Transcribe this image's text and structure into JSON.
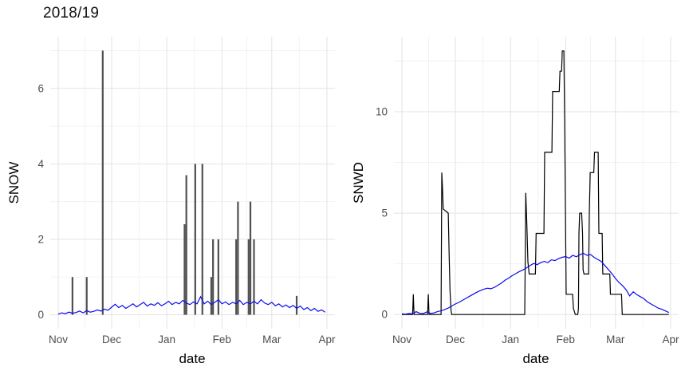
{
  "figure": {
    "title": "2018/19"
  },
  "colors": {
    "background": "#ffffff",
    "bar": "#515151",
    "black": "#000000",
    "blue": "#0b0bf0",
    "grid_major": "#e3e3e3",
    "grid_minor": "#f1f1f1",
    "tick_text": "#4d4d4d",
    "axis_title_text": "#000000"
  },
  "chart_data": [
    {
      "id": "snow-panel",
      "type": "bar",
      "title": "",
      "xlabel": "date",
      "ylabel": "SNOW",
      "x_tick_labels": [
        "Nov",
        "Dec",
        "Jan",
        "Feb",
        "Mar",
        "Apr"
      ],
      "x_tick_days": [
        0,
        30,
        61,
        92,
        120,
        151
      ],
      "x_minor_days": [
        15,
        45.5,
        76.5,
        106,
        135.5
      ],
      "y_ticks": [
        0,
        2,
        4,
        6
      ],
      "y_minor_ticks": [
        1,
        3,
        5,
        7
      ],
      "xlim": [
        -4.5,
        155.5
      ],
      "ylim": [
        -0.37,
        7.37
      ],
      "grid": true,
      "legend": "none",
      "series": [
        {
          "name": "snow-daily-bars",
          "type": "bar",
          "color_key": "bar",
          "points": [
            [
              8,
              1
            ],
            [
              16,
              1
            ],
            [
              25,
              7
            ],
            [
              71,
              2.4
            ],
            [
              72,
              3.7
            ],
            [
              77,
              4
            ],
            [
              81,
              4
            ],
            [
              86,
              1
            ],
            [
              87,
              2
            ],
            [
              90,
              2
            ],
            [
              100,
              2
            ],
            [
              101,
              3
            ],
            [
              107,
              2
            ],
            [
              108,
              3
            ],
            [
              110,
              2
            ],
            [
              134,
              0.5
            ]
          ]
        },
        {
          "name": "snow-mean-line",
          "type": "line",
          "color_key": "blue",
          "x_start": 0,
          "x_step": 2,
          "values": [
            0.02,
            0.05,
            0.03,
            0.07,
            0.04,
            0.06,
            0.1,
            0.05,
            0.11,
            0.07,
            0.09,
            0.13,
            0.1,
            0.15,
            0.12,
            0.2,
            0.28,
            0.19,
            0.25,
            0.17,
            0.23,
            0.29,
            0.21,
            0.27,
            0.33,
            0.23,
            0.29,
            0.25,
            0.32,
            0.24,
            0.29,
            0.36,
            0.27,
            0.33,
            0.29,
            0.38,
            0.31,
            0.27,
            0.34,
            0.29,
            0.48,
            0.29,
            0.36,
            0.27,
            0.33,
            0.4,
            0.29,
            0.34,
            0.27,
            0.33,
            0.29,
            0.38,
            0.27,
            0.33,
            0.29,
            0.36,
            0.29,
            0.4,
            0.31,
            0.27,
            0.33,
            0.24,
            0.29,
            0.21,
            0.26,
            0.19,
            0.25,
            0.17,
            0.23,
            0.14,
            0.19,
            0.11,
            0.17,
            0.09,
            0.13,
            0.07
          ]
        }
      ]
    },
    {
      "id": "snwd-panel",
      "type": "line",
      "title": "",
      "xlabel": "date",
      "ylabel": "SNWD",
      "x_tick_labels": [
        "Nov",
        "Dec",
        "Jan",
        "Feb",
        "Mar",
        "Apr"
      ],
      "x_tick_days": [
        0,
        30,
        61,
        92,
        120,
        151
      ],
      "x_minor_days": [
        15,
        45.5,
        76.5,
        106,
        135.5
      ],
      "y_ticks": [
        0,
        5,
        10
      ],
      "y_minor_ticks": [
        2.5,
        7.5,
        12.5
      ],
      "xlim": [
        -4.5,
        155.5
      ],
      "ylim": [
        -0.7,
        13.7
      ],
      "grid": true,
      "legend": "none",
      "series": [
        {
          "name": "snwd-daily-line",
          "type": "line",
          "color_key": "black",
          "points": [
            [
              0,
              0
            ],
            [
              6,
              0
            ],
            [
              6.4,
              1
            ],
            [
              6.8,
              0
            ],
            [
              14.4,
              0
            ],
            [
              14.8,
              1
            ],
            [
              15.2,
              0
            ],
            [
              22,
              0
            ],
            [
              22.4,
              7
            ],
            [
              22.8,
              6.2
            ],
            [
              23.2,
              5.2
            ],
            [
              26,
              5
            ],
            [
              26.5,
              3
            ],
            [
              27,
              1.2
            ],
            [
              27.6,
              0.2
            ],
            [
              28,
              0
            ],
            [
              69,
              0
            ],
            [
              69.3,
              3
            ],
            [
              69.6,
              6
            ],
            [
              70.2,
              4.4
            ],
            [
              70.8,
              2.6
            ],
            [
              71.5,
              2
            ],
            [
              75,
              2
            ],
            [
              75.4,
              4
            ],
            [
              79.8,
              4
            ],
            [
              80.2,
              8
            ],
            [
              84.3,
              8
            ],
            [
              84.7,
              11
            ],
            [
              88.4,
              11
            ],
            [
              88.8,
              12
            ],
            [
              89.7,
              12
            ],
            [
              90.1,
              13
            ],
            [
              91,
              13
            ],
            [
              91.5,
              9
            ],
            [
              92,
              4
            ],
            [
              92.3,
              1
            ],
            [
              95.9,
              1
            ],
            [
              96.4,
              0.3
            ],
            [
              97.4,
              0
            ],
            [
              98.8,
              0
            ],
            [
              99.2,
              0.3
            ],
            [
              99.5,
              4
            ],
            [
              99.9,
              5
            ],
            [
              101,
              5
            ],
            [
              101.5,
              4
            ],
            [
              101.8,
              2.2
            ],
            [
              102.3,
              2
            ],
            [
              104.9,
              2
            ],
            [
              105.3,
              5
            ],
            [
              105.8,
              7
            ],
            [
              107.8,
              7
            ],
            [
              108.2,
              8
            ],
            [
              110.3,
              8
            ],
            [
              110.7,
              4
            ],
            [
              112.5,
              4
            ],
            [
              112.9,
              2
            ],
            [
              116.8,
              2
            ],
            [
              117.2,
              1
            ],
            [
              123.4,
              1
            ],
            [
              123.8,
              0
            ],
            [
              150,
              0
            ]
          ]
        },
        {
          "name": "snwd-mean-line",
          "type": "line",
          "color_key": "blue",
          "x_start": 0,
          "x_step": 2,
          "values": [
            0.03,
            0.02,
            0.05,
            0.04,
            0.14,
            0.06,
            0.05,
            0.13,
            0.06,
            0.08,
            0.15,
            0.18,
            0.25,
            0.32,
            0.42,
            0.52,
            0.6,
            0.7,
            0.8,
            0.9,
            1.0,
            1.1,
            1.18,
            1.25,
            1.3,
            1.27,
            1.34,
            1.45,
            1.56,
            1.7,
            1.8,
            1.92,
            2.02,
            2.12,
            2.2,
            2.3,
            2.42,
            2.52,
            2.46,
            2.56,
            2.62,
            2.56,
            2.7,
            2.66,
            2.76,
            2.82,
            2.86,
            2.78,
            2.92,
            2.85,
            2.95,
            3.02,
            2.92,
            2.96,
            2.82,
            2.72,
            2.62,
            2.42,
            2.22,
            2.02,
            1.78,
            1.58,
            1.42,
            1.22,
            0.92,
            1.12,
            0.98,
            0.88,
            0.78,
            0.62,
            0.52,
            0.42,
            0.32,
            0.26,
            0.18,
            0.1
          ]
        }
      ]
    }
  ]
}
